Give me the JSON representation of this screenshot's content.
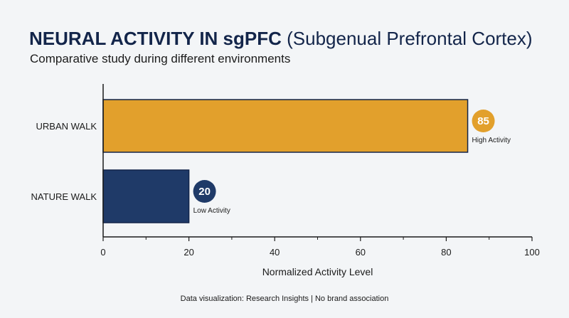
{
  "header": {
    "title_main": "NEURAL ACTIVITY IN sgPFC",
    "title_sub": "(Subgenual Prefrontal Cortex)",
    "subtitle": "Comparative study during different environments"
  },
  "footer": {
    "text": "Data visualization: Research Insights | No brand association"
  },
  "chart_data": {
    "type": "bar",
    "orientation": "horizontal",
    "categories": [
      "URBAN WALK",
      "NATURE WALK"
    ],
    "values": [
      85,
      20
    ],
    "data_labels": [
      "85",
      "20"
    ],
    "annotations": [
      "High Activity",
      "Low Activity"
    ],
    "colors": [
      "#e2a02c",
      "#1f3a68"
    ],
    "title": "NEURAL ACTIVITY IN sgPFC (Subgenual Prefrontal Cortex)",
    "subtitle": "Comparative study during different environments",
    "xlabel": "Normalized Activity Level",
    "ylabel": "",
    "xlim": [
      0,
      100
    ],
    "xticks": [
      0,
      20,
      40,
      60,
      80,
      100
    ],
    "grid": false,
    "legend": "none"
  }
}
